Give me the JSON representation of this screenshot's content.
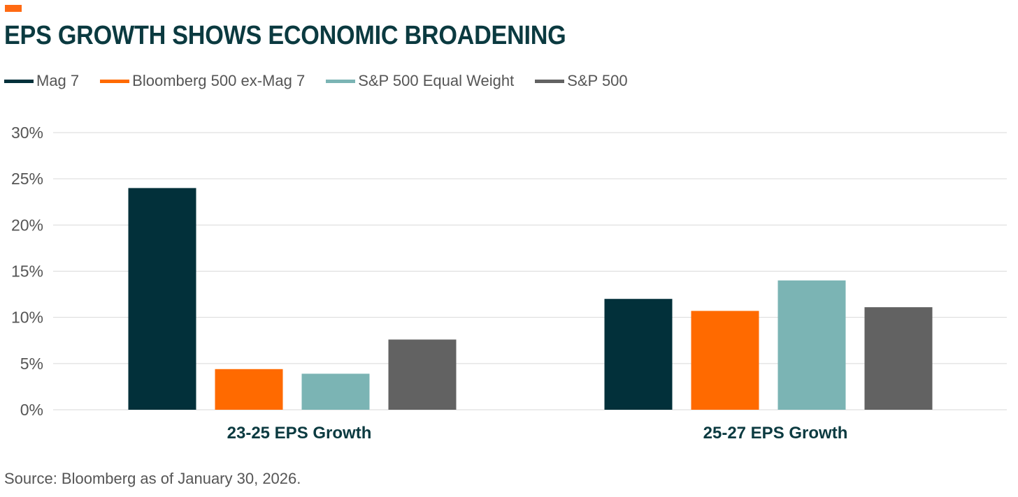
{
  "title": "EPS GROWTH SHOWS ECONOMIC BROADENING",
  "source": "Source: Bloomberg as of January 30, 2026.",
  "colors": {
    "accent": "#ff6a13",
    "title": "#0b3a40",
    "grid": "#d9d9d9",
    "text": "#555555"
  },
  "chart_data": {
    "type": "bar",
    "title": "EPS GROWTH SHOWS ECONOMIC BROADENING",
    "xlabel": "",
    "ylabel": "",
    "ylim": [
      0,
      30
    ],
    "yticks": [
      "0%",
      "5%",
      "10%",
      "15%",
      "20%",
      "25%",
      "30%"
    ],
    "grid": true,
    "legend_position": "top-left",
    "categories": [
      "23-25 EPS Growth",
      "25-27 EPS Growth"
    ],
    "series": [
      {
        "name": "Mag 7",
        "color": "#02303a",
        "values": [
          24.0,
          12.0
        ]
      },
      {
        "name": "Bloomberg 500 ex-Mag 7",
        "color": "#ff6a00",
        "values": [
          4.4,
          10.7
        ]
      },
      {
        "name": "S&P 500 Equal Weight",
        "color": "#7bb4b4",
        "values": [
          3.9,
          14.0
        ]
      },
      {
        "name": "S&P 500",
        "color": "#626262",
        "values": [
          7.6,
          11.1
        ]
      }
    ]
  }
}
